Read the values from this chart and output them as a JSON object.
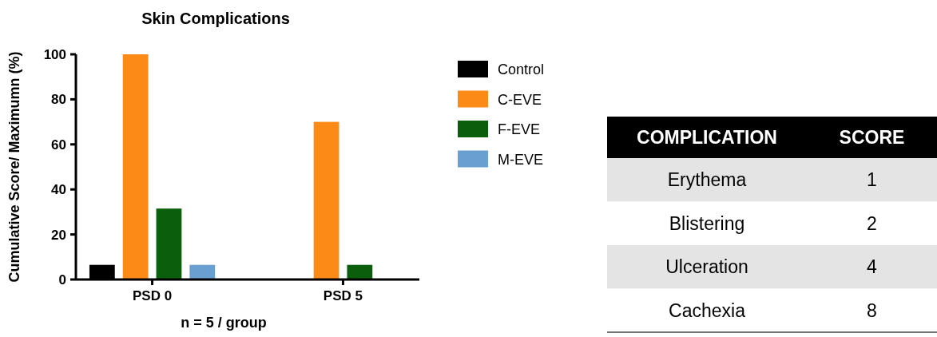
{
  "chart_data": [
    {
      "type": "bar",
      "title": "Skin Complications",
      "xlabel": "n = 5 / group",
      "ylabel": "Cumulative Score/ Maximumn (%)",
      "categories": [
        "PSD 0",
        "PSD 5"
      ],
      "series": [
        {
          "name": "Control",
          "color": "#000000",
          "values": [
            6.5,
            0
          ]
        },
        {
          "name": "C-EVE",
          "color": "#fb8a17",
          "values": [
            100,
            70
          ]
        },
        {
          "name": "F-EVE",
          "color": "#0b5e0b",
          "values": [
            31.5,
            6.5
          ]
        },
        {
          "name": "M-EVE",
          "color": "#6a9fd2",
          "values": [
            6.5,
            0
          ]
        }
      ],
      "ylim": [
        0,
        100
      ],
      "yticks": [
        0,
        20,
        40,
        60,
        80,
        100
      ],
      "grid": false,
      "legend": "right"
    },
    {
      "type": "other",
      "annotations": [
        "COMPLICATION",
        "SCORE",
        "Erythema",
        "1",
        "Blistering",
        "2",
        "Ulceration",
        "4",
        "Cachexia",
        "8"
      ]
    }
  ]
}
